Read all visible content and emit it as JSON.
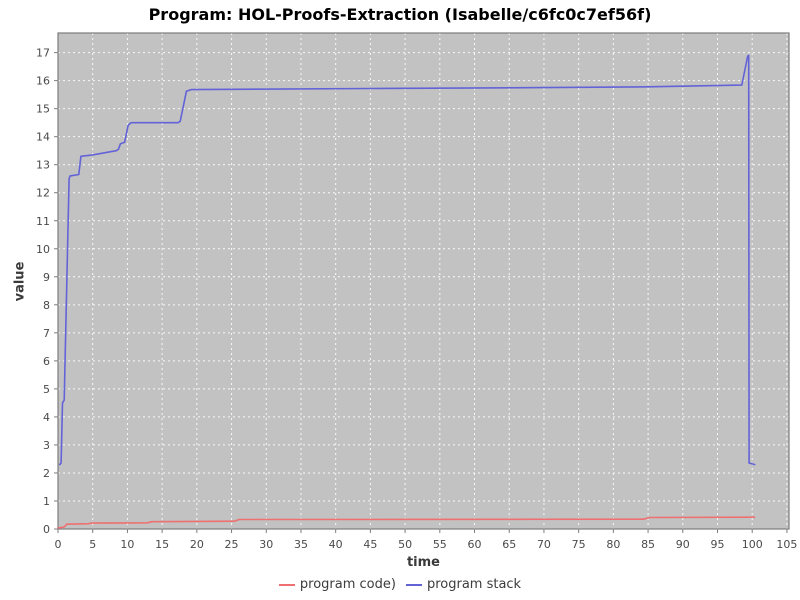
{
  "window": {
    "title": "Program: HOL-Proofs-Extraction (Isabelle/c6fc0c7ef56f)"
  },
  "chart_data": {
    "type": "line",
    "title": "Program: HOL-Proofs-Extraction (Isabelle/c6fc0c7ef56f)",
    "xlabel": "time",
    "ylabel": "value",
    "xlim": [
      0,
      105.3
    ],
    "ylim": [
      0,
      17.7
    ],
    "xticks": [
      0,
      5,
      10,
      15,
      20,
      25,
      30,
      35,
      40,
      45,
      50,
      55,
      60,
      65,
      70,
      75,
      80,
      85,
      90,
      95,
      100,
      105
    ],
    "yticks": [
      0,
      1,
      2,
      3,
      4,
      5,
      6,
      7,
      8,
      9,
      10,
      11,
      12,
      13,
      14,
      15,
      16,
      17
    ],
    "grid": true,
    "legend_position": "bottom",
    "colors": {
      "plot_bg": "#c2c2c2",
      "grid": "#ffffff",
      "border": "#7d7d7d",
      "tick": "#7d7d7d",
      "tick_text": "#4a4a4a",
      "axis_label_text": "#3a3a3a",
      "title_text": "#000000",
      "series_red": "#ee7070",
      "series_blue": "#6363d8"
    },
    "series": [
      {
        "name": "program code)",
        "color": "#ee7070",
        "points": [
          [
            0.0,
            0.04
          ],
          [
            0.9,
            0.07
          ],
          [
            1.25,
            0.17
          ],
          [
            4.4,
            0.19
          ],
          [
            4.9,
            0.21
          ],
          [
            12.9,
            0.22
          ],
          [
            13.5,
            0.26
          ],
          [
            19.8,
            0.27
          ],
          [
            25.4,
            0.28
          ],
          [
            26.1,
            0.34
          ],
          [
            84.3,
            0.35
          ],
          [
            85.3,
            0.41
          ],
          [
            100.35,
            0.42
          ]
        ]
      },
      {
        "name": "program stack",
        "color": "#6363d8",
        "points": [
          [
            0.25,
            2.3
          ],
          [
            0.45,
            2.35
          ],
          [
            0.65,
            4.5
          ],
          [
            0.9,
            4.6
          ],
          [
            1.6,
            12.5
          ],
          [
            1.75,
            12.6
          ],
          [
            3.0,
            12.65
          ],
          [
            3.3,
            13.3
          ],
          [
            5.0,
            13.35
          ],
          [
            8.4,
            13.5
          ],
          [
            8.7,
            13.55
          ],
          [
            9.0,
            13.75
          ],
          [
            9.6,
            13.8
          ],
          [
            10.1,
            14.4
          ],
          [
            10.5,
            14.5
          ],
          [
            17.3,
            14.5
          ],
          [
            17.6,
            14.55
          ],
          [
            18.5,
            15.62
          ],
          [
            19.2,
            15.68
          ],
          [
            45.0,
            15.72
          ],
          [
            70.0,
            15.75
          ],
          [
            85.0,
            15.78
          ],
          [
            98.5,
            15.84
          ],
          [
            99.35,
            16.88
          ],
          [
            99.5,
            16.9
          ],
          [
            99.55,
            2.35
          ],
          [
            100.35,
            2.3
          ]
        ]
      }
    ]
  }
}
